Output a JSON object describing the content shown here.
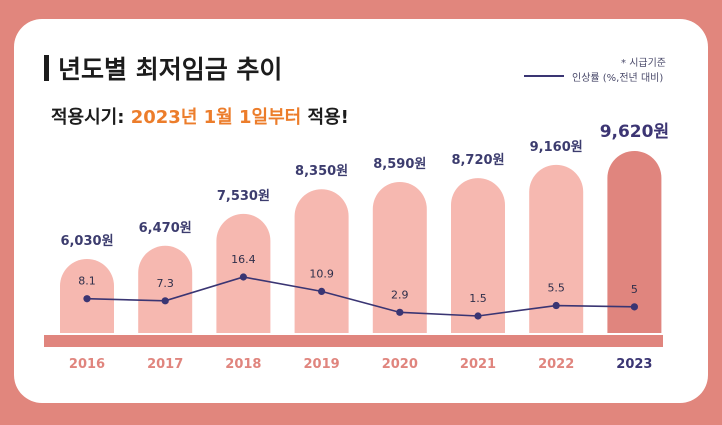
{
  "header": {
    "title": "년도별 최저임금 추이",
    "subtitle_prefix": "적용시기: ",
    "subtitle_highlight": "2023년 1월 1일부터",
    "subtitle_suffix": " 적용!",
    "note": "* 시급기준",
    "legend_label": "인상률 (%,전년 대비)"
  },
  "colors": {
    "background": "#e1867d",
    "bar": "#f6b8b0",
    "bar_highlight": "#e0857e",
    "line": "#3a3573",
    "subtitle_highlight": "#ec7d2b",
    "year_label": "#e0857e",
    "year_label_highlight": "#3a3573",
    "wage_label": "#3c3c6e",
    "wage_label_highlight": "#3c3573"
  },
  "chart_data": {
    "type": "bar",
    "categories": [
      "2016",
      "2017",
      "2018",
      "2019",
      "2020",
      "2021",
      "2022",
      "2023"
    ],
    "wage_labels": [
      "6,030원",
      "6,470원",
      "7,530원",
      "8,350원",
      "8,590원",
      "8,720원",
      "9,160원",
      "9,620원"
    ],
    "series": [
      {
        "name": "",
        "values": [
          6030,
          6470,
          7530,
          8350,
          8590,
          8720,
          9160,
          9620
        ]
      },
      {
        "name": "인상률 (%,전년 대비)",
        "type": "line",
        "values": [
          8.1,
          7.3,
          16.4,
          10.9,
          2.9,
          1.5,
          5.5,
          5
        ]
      }
    ],
    "highlight_index": 7
  }
}
